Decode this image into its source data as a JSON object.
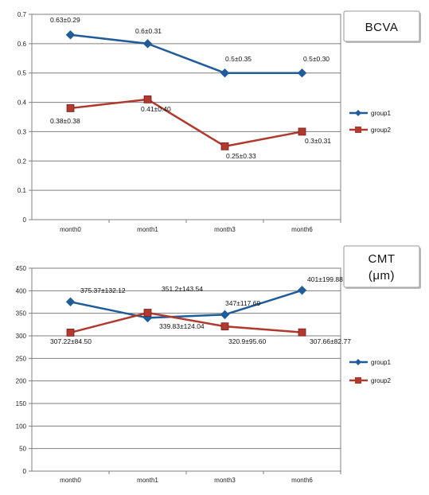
{
  "chart_data": [
    {
      "type": "line",
      "title": "BCVA",
      "categories": [
        "month0",
        "month1",
        "month3",
        "month6"
      ],
      "ylim": [
        0,
        0.7
      ],
      "yticks": [
        "0",
        "0.1",
        "0.2",
        "0.3",
        "0.4",
        "0.5",
        "0.6",
        "0.7"
      ],
      "grid": true,
      "legend_position": "right",
      "series": [
        {
          "name": "group1",
          "color": "#1F5C99",
          "marker": "diamond",
          "values": [
            0.63,
            0.6,
            0.5,
            0.5
          ],
          "labels": [
            "0.63±0.29",
            "0.6±0.31",
            "0.5±0.35",
            "0.5±0.30"
          ]
        },
        {
          "name": "group2",
          "color": "#B03A2E",
          "marker": "square",
          "values": [
            0.38,
            0.41,
            0.25,
            0.3
          ],
          "labels": [
            "0.38±0.38",
            "0.41±0.40",
            "0.25±0.33",
            "0.3±0.31"
          ]
        }
      ]
    },
    {
      "type": "line",
      "title": "CMT",
      "subtitle": "(μm)",
      "categories": [
        "month0",
        "month1",
        "month3",
        "month6"
      ],
      "ylim": [
        0,
        450
      ],
      "yticks": [
        "0",
        "50",
        "100",
        "150",
        "200",
        "250",
        "300",
        "350",
        "400",
        "450"
      ],
      "grid": true,
      "legend_position": "right",
      "series": [
        {
          "name": "group1",
          "color": "#1F5C99",
          "marker": "diamond",
          "values": [
            375.37,
            339.83,
            347,
            401
          ],
          "labels": [
            "375.37±132.12",
            "339.83±124.04",
            "347±117.69",
            "401±199.88"
          ]
        },
        {
          "name": "group2",
          "color": "#B03A2E",
          "marker": "square",
          "values": [
            307.22,
            351.2,
            320.9,
            307.66
          ],
          "labels": [
            "307.22±84.50",
            "351.2±143.54",
            "320.9±95.60",
            "307.66±82.77"
          ]
        }
      ]
    }
  ]
}
